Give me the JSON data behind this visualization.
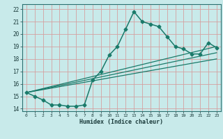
{
  "xlabel": "Humidex (Indice chaleur)",
  "ylabel": "",
  "background_color": "#c8eaea",
  "grid_color": "#d4a0a0",
  "line_color": "#1a7a6a",
  "xlim": [
    -0.5,
    23.5
  ],
  "ylim": [
    13.8,
    22.4
  ],
  "xticks": [
    0,
    1,
    2,
    3,
    4,
    5,
    6,
    7,
    8,
    9,
    10,
    11,
    12,
    13,
    14,
    15,
    16,
    17,
    18,
    19,
    20,
    21,
    22,
    23
  ],
  "yticks": [
    14,
    15,
    16,
    17,
    18,
    19,
    20,
    21,
    22
  ],
  "lines": [
    {
      "x": [
        0,
        1,
        2,
        3,
        4,
        5,
        6,
        7,
        8,
        9,
        10,
        11,
        12,
        13,
        14,
        15,
        16,
        17,
        18,
        19,
        20,
        21,
        22,
        23
      ],
      "y": [
        15.3,
        15.0,
        14.7,
        14.3,
        14.3,
        14.2,
        14.2,
        14.3,
        16.3,
        17.0,
        18.3,
        19.0,
        20.4,
        21.8,
        21.0,
        20.8,
        20.6,
        19.8,
        19.0,
        18.8,
        18.4,
        18.4,
        19.3,
        18.9
      ],
      "marker": "D",
      "markersize": 2.5,
      "linewidth": 1.1
    },
    {
      "x": [
        0,
        23
      ],
      "y": [
        15.3,
        19.0
      ],
      "marker": null,
      "markersize": 0,
      "linewidth": 0.9
    },
    {
      "x": [
        0,
        23
      ],
      "y": [
        15.3,
        18.5
      ],
      "marker": null,
      "markersize": 0,
      "linewidth": 0.9
    },
    {
      "x": [
        0,
        23
      ],
      "y": [
        15.3,
        18.0
      ],
      "marker": null,
      "markersize": 0,
      "linewidth": 0.9
    }
  ]
}
